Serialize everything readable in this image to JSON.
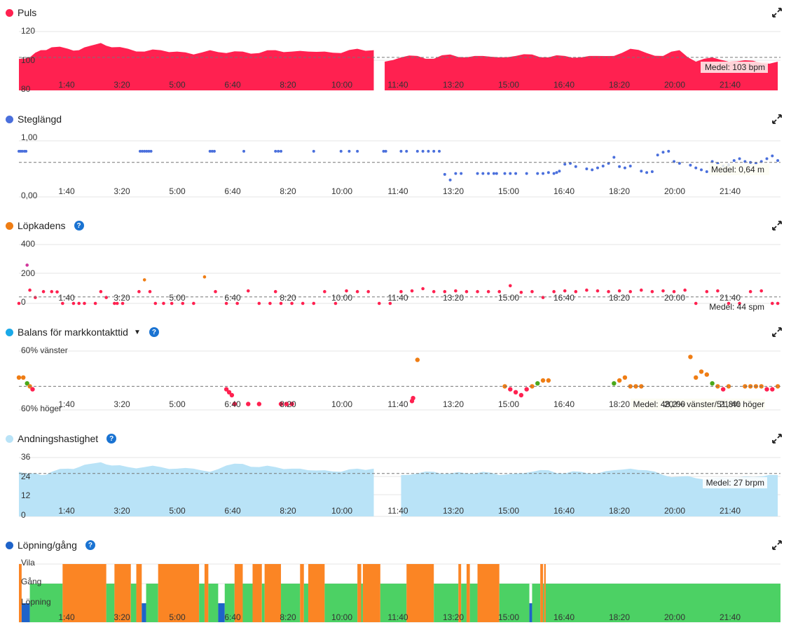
{
  "colors": {
    "puls": "#ff2150",
    "steglangd": "#4a6fdc",
    "lopkadens": "#ef7d14",
    "balans": "#1aa9e8",
    "andning": "#b9e3f7",
    "lopning": "#1e63c9",
    "walk": "#4cd164",
    "rest": "#fb8524",
    "run": "#1e63c9",
    "grid": "#e4e4e4",
    "mean_line": "#777777"
  },
  "icons": {
    "expand": "expand-icon",
    "help": "help-icon",
    "dropdown": "caret-down-icon"
  },
  "x_ticks": [
    "1:40",
    "3:20",
    "5:00",
    "6:40",
    "8:20",
    "10:00",
    "11:40",
    "13:20",
    "15:00",
    "16:40",
    "18:20",
    "20:00",
    "21:40"
  ],
  "chart_data": [
    {
      "id": "puls",
      "type": "area",
      "title": "Puls",
      "x_unit": "time of day (minutes since 0:00)",
      "yticks": [
        "120",
        "100",
        "80"
      ],
      "ylim": [
        80,
        121
      ],
      "mean": 103,
      "mean_label": "Medel: 103 bpm",
      "x": [
        0,
        20,
        40,
        60,
        90,
        110,
        130,
        150,
        170,
        200,
        230,
        260,
        290,
        320,
        350,
        380,
        410,
        440,
        470,
        500,
        530,
        560,
        590,
        620,
        650,
        665,
        670,
        700,
        730,
        760,
        790,
        820,
        850,
        880,
        910,
        940,
        970,
        1000,
        1030,
        1060,
        1090,
        1120,
        1150,
        1180,
        1210,
        1240,
        1270,
        1300,
        1330,
        1360,
        1390
      ],
      "values": [
        102,
        103,
        108,
        110,
        109,
        108,
        111,
        113,
        110,
        109,
        107,
        108,
        107,
        105,
        108,
        106,
        107,
        106,
        108,
        107,
        107,
        107,
        106,
        109,
        108,
        null,
        100,
        103,
        104,
        102,
        105,
        103,
        104,
        103,
        104,
        105,
        103,
        104,
        103,
        104,
        104,
        109,
        106,
        104,
        108,
        100,
        103,
        100,
        101,
        99,
        100
      ]
    },
    {
      "id": "steglangd",
      "type": "scatter",
      "title": "Steglängd",
      "yticks": [
        "1,00",
        "0,00"
      ],
      "ylim": [
        0,
        1
      ],
      "mean": 0.64,
      "mean_label": "Medel: 0,64 m",
      "x": [
        0,
        3,
        6,
        10,
        13,
        222,
        226,
        230,
        234,
        238,
        242,
        350,
        354,
        358,
        412,
        470,
        475,
        480,
        540,
        590,
        605,
        620,
        668,
        672,
        700,
        710,
        730,
        740,
        750,
        760,
        770,
        780,
        790,
        800,
        810,
        840,
        850,
        860,
        870,
        875,
        890,
        900,
        910,
        930,
        950,
        960,
        970,
        980,
        985,
        990,
        1000,
        1010,
        1020,
        1040,
        1050,
        1060,
        1070,
        1080,
        1090,
        1100,
        1110,
        1120,
        1140,
        1150,
        1160,
        1170,
        1180,
        1190,
        1200,
        1210,
        1230,
        1240,
        1250,
        1260,
        1270,
        1280,
        1290,
        1300,
        1310,
        1320,
        1330,
        1340,
        1350,
        1360,
        1370,
        1380,
        1390
      ],
      "values": [
        0.88,
        0.88,
        0.88,
        0.88,
        0.88,
        0.88,
        0.88,
        0.88,
        0.88,
        0.88,
        0.88,
        0.88,
        0.88,
        0.88,
        0.88,
        0.88,
        0.88,
        0.88,
        0.88,
        0.88,
        0.88,
        0.88,
        0.88,
        0.88,
        0.88,
        0.88,
        0.88,
        0.88,
        0.88,
        0.88,
        0.88,
        0.38,
        0.26,
        0.4,
        0.4,
        0.4,
        0.4,
        0.4,
        0.4,
        0.4,
        0.4,
        0.4,
        0.4,
        0.4,
        0.4,
        0.4,
        0.42,
        0.4,
        0.42,
        0.45,
        0.6,
        0.62,
        0.55,
        0.5,
        0.48,
        0.52,
        0.56,
        0.62,
        0.75,
        0.55,
        0.52,
        0.56,
        0.45,
        0.42,
        0.44,
        0.8,
        0.86,
        0.88,
        0.66,
        0.62,
        0.58,
        0.52,
        0.48,
        0.44,
        0.66,
        0.62,
        0.56,
        0.58,
        0.68,
        0.72,
        0.66,
        0.64,
        0.62,
        0.66,
        0.72,
        0.78,
        0.68
      ]
    },
    {
      "id": "lopkadens",
      "type": "scatter",
      "title": "Löpkadens",
      "yticks": [
        "400",
        "200",
        "0"
      ],
      "ylim": [
        0,
        400
      ],
      "mean": 44,
      "mean_label": "Medel: 44 spm",
      "x": [
        0,
        15,
        20,
        30,
        45,
        60,
        70,
        80,
        100,
        110,
        120,
        140,
        150,
        160,
        175,
        180,
        190,
        220,
        230,
        240,
        250,
        265,
        280,
        300,
        320,
        340,
        360,
        380,
        400,
        420,
        440,
        460,
        470,
        480,
        500,
        520,
        540,
        560,
        580,
        600,
        620,
        640,
        660,
        680,
        700,
        720,
        740,
        760,
        780,
        800,
        820,
        840,
        860,
        880,
        900,
        920,
        940,
        960,
        980,
        1000,
        1020,
        1040,
        1060,
        1080,
        1100,
        1120,
        1140,
        1160,
        1180,
        1200,
        1220,
        1240,
        1260,
        1280,
        1300,
        1320,
        1340,
        1360,
        1380,
        1390
      ],
      "values": [
        0,
        260,
        90,
        40,
        80,
        80,
        78,
        0,
        0,
        0,
        0,
        0,
        80,
        40,
        0,
        0,
        0,
        80,
        160,
        80,
        0,
        0,
        0,
        0,
        0,
        180,
        80,
        0,
        0,
        85,
        0,
        0,
        80,
        0,
        0,
        0,
        0,
        80,
        0,
        85,
        80,
        80,
        0,
        0,
        80,
        85,
        100,
        80,
        80,
        85,
        80,
        80,
        80,
        80,
        120,
        75,
        80,
        40,
        80,
        85,
        80,
        90,
        85,
        80,
        85,
        80,
        90,
        80,
        85,
        80,
        90,
        0,
        80,
        85,
        0,
        0,
        80,
        85,
        0,
        0
      ]
    },
    {
      "id": "balans",
      "type": "scatter",
      "title": "Balans för markkontakttid",
      "yticks": [
        "60% vänster",
        "60% höger"
      ],
      "ylim": [
        40,
        60
      ],
      "mean": 48,
      "mean_label": "Medel: 48,2% vänster/51,8% höger",
      "x": [
        0,
        8,
        15,
        20,
        25,
        380,
        385,
        390,
        395,
        420,
        440,
        480,
        490,
        500,
        720,
        722,
        730,
        890,
        900,
        910,
        920,
        930,
        940,
        950,
        960,
        970,
        1090,
        1100,
        1110,
        1120,
        1130,
        1140,
        1230,
        1240,
        1250,
        1260,
        1270,
        1280,
        1290,
        1300,
        1330,
        1340,
        1350,
        1360,
        1370,
        1380,
        1390
      ],
      "values": [
        51,
        51,
        49,
        48,
        47,
        47,
        46,
        45,
        42,
        42,
        42,
        42,
        42,
        42,
        43,
        44,
        57,
        48,
        47,
        46,
        45,
        47,
        48,
        49,
        50,
        50,
        49,
        50,
        51,
        48,
        48,
        48,
        58,
        51,
        53,
        52,
        49,
        48,
        47,
        48,
        48,
        48,
        48,
        48,
        47,
        47,
        48
      ]
    },
    {
      "id": "andning",
      "type": "area",
      "title": "Andningshastighet",
      "yticks": [
        "36",
        "24",
        "12",
        "0"
      ],
      "ylim": [
        0,
        37
      ],
      "mean": 27,
      "mean_label": "Medel: 27 brpm",
      "x": [
        0,
        20,
        40,
        60,
        90,
        110,
        130,
        150,
        170,
        200,
        230,
        260,
        290,
        320,
        350,
        380,
        410,
        440,
        470,
        500,
        530,
        560,
        590,
        620,
        650,
        665,
        700,
        730,
        760,
        790,
        820,
        850,
        880,
        910,
        940,
        970,
        1000,
        1030,
        1060,
        1090,
        1120,
        1150,
        1180,
        1210,
        1240,
        1270,
        1300,
        1330,
        1360,
        1390
      ],
      "values": [
        28,
        27,
        26,
        28,
        30,
        31,
        33,
        34,
        32,
        31,
        31,
        31,
        30,
        30,
        28,
        32,
        33,
        31,
        31,
        30,
        29,
        29,
        28,
        30,
        30,
        null,
        26,
        27,
        28,
        27,
        27,
        28,
        26,
        27,
        28,
        29,
        27,
        28,
        27,
        29,
        30,
        29,
        26,
        25,
        24,
        24,
        24,
        25,
        25,
        26
      ]
    },
    {
      "id": "lopning",
      "type": "area",
      "title": "Löpning/gång",
      "yticks": [
        "Vila",
        "Gång",
        "Löpning"
      ],
      "categories": [
        "Löpning",
        "Gång",
        "Vila"
      ],
      "segments": [
        {
          "start": 0,
          "end": 5,
          "state": "Vila"
        },
        {
          "start": 5,
          "end": 20,
          "state": "Löpning"
        },
        {
          "start": 20,
          "end": 80,
          "state": "Gång"
        },
        {
          "start": 80,
          "end": 160,
          "state": "Vila"
        },
        {
          "start": 160,
          "end": 175,
          "state": "Gång"
        },
        {
          "start": 175,
          "end": 205,
          "state": "Vila"
        },
        {
          "start": 205,
          "end": 215,
          "state": "Gång"
        },
        {
          "start": 215,
          "end": 225,
          "state": "Vila"
        },
        {
          "start": 225,
          "end": 233,
          "state": "Löpning"
        },
        {
          "start": 233,
          "end": 255,
          "state": "Gång"
        },
        {
          "start": 255,
          "end": 330,
          "state": "Vila"
        },
        {
          "start": 330,
          "end": 340,
          "state": "Gång"
        },
        {
          "start": 340,
          "end": 347,
          "state": "Vila"
        },
        {
          "start": 347,
          "end": 365,
          "state": "Gång"
        },
        {
          "start": 365,
          "end": 377,
          "state": "Löpning"
        },
        {
          "start": 377,
          "end": 395,
          "state": "Gång"
        },
        {
          "start": 395,
          "end": 410,
          "state": "Vila"
        },
        {
          "start": 410,
          "end": 428,
          "state": "Gång"
        },
        {
          "start": 428,
          "end": 445,
          "state": "Vila"
        },
        {
          "start": 445,
          "end": 450,
          "state": "Gång"
        },
        {
          "start": 450,
          "end": 480,
          "state": "Vila"
        },
        {
          "start": 480,
          "end": 515,
          "state": "Gång"
        },
        {
          "start": 515,
          "end": 522,
          "state": "Vila"
        },
        {
          "start": 522,
          "end": 530,
          "state": "Gång"
        },
        {
          "start": 530,
          "end": 560,
          "state": "Vila"
        },
        {
          "start": 560,
          "end": 620,
          "state": "Gång"
        },
        {
          "start": 620,
          "end": 627,
          "state": "Vila"
        },
        {
          "start": 627,
          "end": 630,
          "state": "Gång"
        },
        {
          "start": 630,
          "end": 662,
          "state": "Vila"
        },
        {
          "start": 662,
          "end": 710,
          "state": "Gång"
        },
        {
          "start": 710,
          "end": 760,
          "state": "Vila"
        },
        {
          "start": 760,
          "end": 805,
          "state": "Gång"
        },
        {
          "start": 805,
          "end": 810,
          "state": "Vila"
        },
        {
          "start": 810,
          "end": 820,
          "state": "Gång"
        },
        {
          "start": 820,
          "end": 826,
          "state": "Vila"
        },
        {
          "start": 826,
          "end": 840,
          "state": "Gång"
        },
        {
          "start": 840,
          "end": 880,
          "state": "Vila"
        },
        {
          "start": 880,
          "end": 935,
          "state": "Gång"
        },
        {
          "start": 935,
          "end": 940,
          "state": "Löpning"
        },
        {
          "start": 940,
          "end": 955,
          "state": "Gång"
        },
        {
          "start": 955,
          "end": 960,
          "state": "Vila"
        },
        {
          "start": 960,
          "end": 962,
          "state": "Gång"
        },
        {
          "start": 962,
          "end": 965,
          "state": "Vila"
        },
        {
          "start": 965,
          "end": 1395,
          "state": "Gång"
        }
      ]
    }
  ]
}
